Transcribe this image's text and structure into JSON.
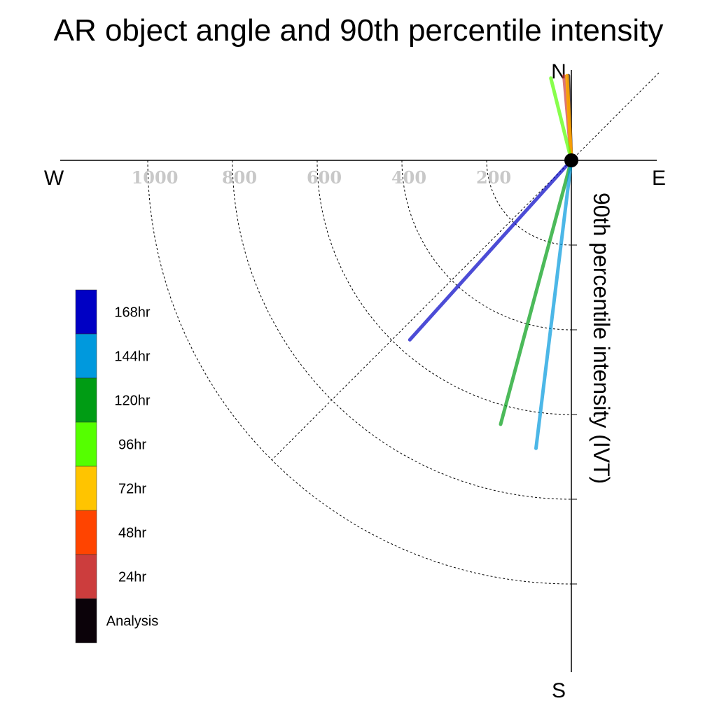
{
  "chart_data": {
    "type": "polar-vectors",
    "title": "AR object angle and 90th percentile intensity",
    "ylabel": "90th percentile intensity (IVT)",
    "directions": {
      "north": "N",
      "south": "S",
      "east": "E",
      "west": "W"
    },
    "radius_ticks": [
      200,
      400,
      600,
      800,
      1000
    ],
    "radius_tick_labels": [
      "200",
      "400",
      "600",
      "800",
      "1000"
    ],
    "rmax": 1200,
    "grid": true,
    "legend_position": "left",
    "series": [
      {
        "name": "Analysis",
        "color": "#0b0209",
        "angle_deg": 358,
        "intensity": 200
      },
      {
        "name": "24hr",
        "color": "#cc3d3d",
        "angle_deg": 355,
        "intensity": 200
      },
      {
        "name": "48hr",
        "color": "#ff4400",
        "angle_deg": 357,
        "intensity": 200
      },
      {
        "name": "72hr",
        "color": "#ffc400",
        "angle_deg": 357,
        "intensity": 200
      },
      {
        "name": "96hr",
        "color": "#55ff00",
        "angle_deg": 346,
        "intensity": 200
      },
      {
        "name": "120hr",
        "color": "#009c14",
        "angle_deg": 195,
        "intensity": 645
      },
      {
        "name": "144hr",
        "color": "#0099dd",
        "angle_deg": 187,
        "intensity": 685
      },
      {
        "name": "168hr",
        "color": "#0000c4",
        "angle_deg": 222,
        "intensity": 570
      }
    ],
    "legend": [
      {
        "label": "168hr",
        "color": "#0000c4"
      },
      {
        "label": "144hr",
        "color": "#0099dd"
      },
      {
        "label": "120hr",
        "color": "#009c14"
      },
      {
        "label": "96hr",
        "color": "#55ff00"
      },
      {
        "label": "72hr",
        "color": "#ffc400"
      },
      {
        "label": "48hr",
        "color": "#ff4400"
      },
      {
        "label": "24hr",
        "color": "#cc3d3d"
      },
      {
        "label": "Analysis",
        "color": "#0b0209"
      }
    ]
  }
}
